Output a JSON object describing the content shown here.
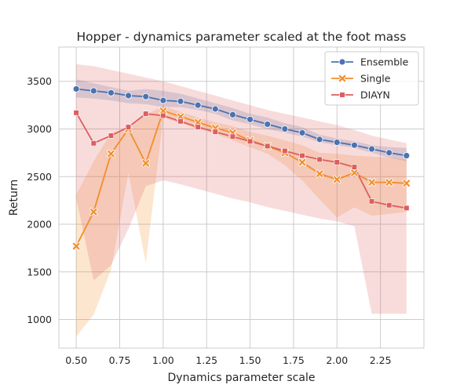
{
  "chart_data": {
    "type": "line",
    "title": "Hopper - dynamics parameter scaled at the foot mass",
    "xlabel": "Dynamics parameter scale",
    "ylabel": "Return",
    "xlim": [
      0.4,
      2.5
    ],
    "ylim": [
      700,
      3860
    ],
    "xticks": [
      0.5,
      0.75,
      1.0,
      1.25,
      1.5,
      1.75,
      2.0,
      2.25
    ],
    "xtick_labels": [
      "0.50",
      "0.75",
      "1.00",
      "1.25",
      "1.50",
      "1.75",
      "2.00",
      "2.25"
    ],
    "yticks": [
      1000,
      1500,
      2000,
      2500,
      3000,
      3500
    ],
    "ytick_labels": [
      "1000",
      "1500",
      "2000",
      "2500",
      "3000",
      "3500"
    ],
    "grid": true,
    "legend_position": "top-right",
    "x": [
      0.5,
      0.6,
      0.7,
      0.8,
      0.9,
      1.0,
      1.1,
      1.2,
      1.3,
      1.4,
      1.5,
      1.6,
      1.7,
      1.8,
      1.9,
      2.0,
      2.1,
      2.2,
      2.3,
      2.4
    ],
    "series": [
      {
        "name": "Ensemble",
        "color": "#4c72b0",
        "marker": "circle",
        "values": [
          3420,
          3400,
          3380,
          3350,
          3340,
          3300,
          3290,
          3250,
          3210,
          3150,
          3100,
          3050,
          3000,
          2960,
          2890,
          2860,
          2830,
          2790,
          2750,
          2720
        ],
        "lower": [
          3330,
          3320,
          3300,
          3270,
          3260,
          3230,
          3230,
          3200,
          3160,
          3090,
          3050,
          3000,
          2960,
          2920,
          2860,
          2830,
          2800,
          2750,
          2700,
          2660
        ],
        "upper": [
          3520,
          3480,
          3440,
          3400,
          3420,
          3400,
          3370,
          3320,
          3270,
          3220,
          3160,
          3120,
          3060,
          3020,
          2940,
          2900,
          2870,
          2830,
          2810,
          2800
        ]
      },
      {
        "name": "Single",
        "color": "#f28e2b",
        "marker": "x",
        "values": [
          1770,
          2130,
          2740,
          3000,
          2640,
          3190,
          3130,
          3070,
          3010,
          2960,
          2880,
          2820,
          2750,
          2650,
          2530,
          2470,
          2540,
          2440,
          2440,
          2430
        ],
        "lower": [
          820,
          1050,
          1520,
          2540,
          1590,
          3120,
          3060,
          3000,
          2950,
          2880,
          2810,
          2740,
          2620,
          2460,
          2260,
          2070,
          2180,
          2090,
          2110,
          2130
        ],
        "upper": [
          2310,
          2660,
          2960,
          3000,
          3150,
          3240,
          3180,
          3120,
          3070,
          3030,
          2970,
          2930,
          2880,
          2830,
          2750,
          2740,
          2720,
          2710,
          2700,
          2680
        ]
      },
      {
        "name": "DIAYN",
        "color": "#dd5e60",
        "marker": "square",
        "values": [
          3170,
          2850,
          2930,
          3020,
          3160,
          3140,
          3080,
          3020,
          2970,
          2920,
          2870,
          2820,
          2770,
          2720,
          2680,
          2650,
          2600,
          2240,
          2200,
          2170
        ],
        "lower": [
          2270,
          1410,
          1570,
          1950,
          2400,
          2460,
          2420,
          2370,
          2320,
          2270,
          2230,
          2180,
          2140,
          2100,
          2060,
          2030,
          1980,
          1060,
          1060,
          1060
        ],
        "upper": [
          3680,
          3660,
          3620,
          3580,
          3540,
          3500,
          3450,
          3400,
          3350,
          3300,
          3250,
          3200,
          3160,
          3120,
          3080,
          3040,
          2990,
          2930,
          2890,
          2850
        ]
      }
    ]
  }
}
